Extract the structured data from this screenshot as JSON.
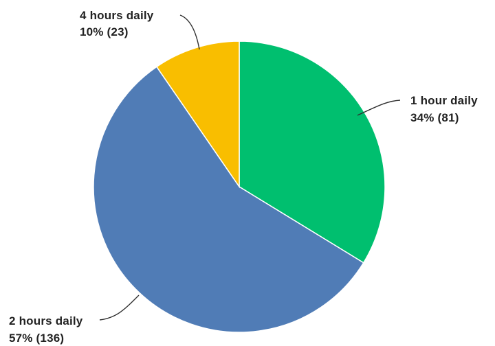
{
  "chart_data": {
    "type": "pie",
    "title": "",
    "slices": [
      {
        "label": "1 hour daily",
        "percent_label": "34% (81)",
        "value": 81,
        "color": "#00bf6f"
      },
      {
        "label": "2 hours daily",
        "percent_label": "57% (136)",
        "value": 136,
        "color": "#507cb6"
      },
      {
        "label": "4 hours daily",
        "percent_label": "10% (23)",
        "value": 23,
        "color": "#f9be00"
      }
    ]
  }
}
